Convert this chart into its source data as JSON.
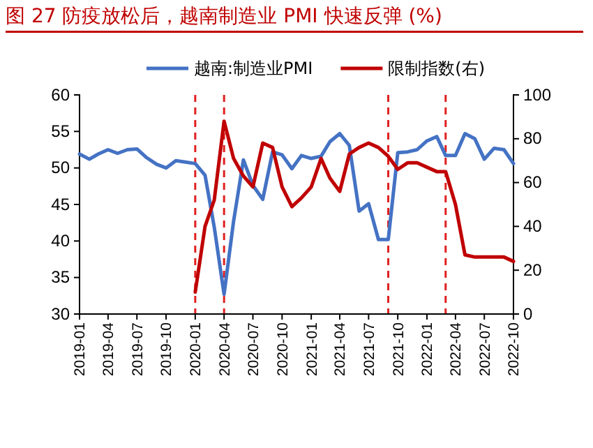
{
  "chart_data": {
    "type": "line",
    "title": "图 27 防疫放松后，越南制造业 PMI 快速反弹 (%)",
    "x": [
      "2019-01",
      "2019-02",
      "2019-03",
      "2019-04",
      "2019-05",
      "2019-06",
      "2019-07",
      "2019-08",
      "2019-09",
      "2019-10",
      "2019-11",
      "2019-12",
      "2020-01",
      "2020-02",
      "2020-03",
      "2020-04",
      "2020-05",
      "2020-06",
      "2020-07",
      "2020-08",
      "2020-09",
      "2020-10",
      "2020-11",
      "2020-12",
      "2021-01",
      "2021-02",
      "2021-03",
      "2021-04",
      "2021-05",
      "2021-06",
      "2021-07",
      "2021-08",
      "2021-09",
      "2021-10",
      "2021-11",
      "2021-12",
      "2022-01",
      "2022-02",
      "2022-03",
      "2022-04",
      "2022-05",
      "2022-06",
      "2022-07",
      "2022-08",
      "2022-09",
      "2022-10"
    ],
    "series": [
      {
        "name": "越南:制造业PMI",
        "color": "#4472c4",
        "values": [
          51.9,
          51.2,
          51.9,
          52.5,
          52.0,
          52.5,
          52.6,
          51.4,
          50.5,
          50.0,
          51.0,
          50.8,
          50.6,
          49.0,
          41.9,
          32.7,
          42.7,
          51.1,
          47.6,
          45.7,
          52.2,
          51.8,
          49.9,
          51.7,
          51.3,
          51.6,
          53.6,
          54.7,
          53.1,
          44.1,
          45.1,
          40.2,
          40.2,
          52.1,
          52.2,
          52.5,
          53.7,
          54.3,
          51.7,
          51.7,
          54.7,
          54.0,
          51.2,
          52.7,
          52.5,
          50.6
        ]
      },
      {
        "name": "限制指数(右)",
        "color": "#c00000",
        "axis": "y2",
        "values": [
          null,
          null,
          null,
          null,
          null,
          null,
          null,
          null,
          null,
          null,
          null,
          null,
          10,
          40,
          52,
          88,
          71,
          63,
          58,
          78,
          76,
          58,
          49,
          53,
          58,
          71,
          62,
          56,
          73,
          76,
          78,
          76,
          72,
          66,
          69,
          69,
          67,
          65,
          65,
          50,
          27,
          26,
          26,
          26,
          26,
          24
        ]
      }
    ],
    "ylim": [
      30,
      60
    ],
    "yticks": [
      30,
      35,
      40,
      45,
      50,
      55,
      60
    ],
    "y2lim": [
      0,
      100
    ],
    "y2ticks": [
      0,
      20,
      40,
      60,
      80,
      100
    ],
    "xlim": [
      "2019-01",
      "2022-10"
    ],
    "xticks": [
      "2019-01",
      "2019-04",
      "2019-07",
      "2019-10",
      "2020-01",
      "2020-04",
      "2020-07",
      "2020-10",
      "2021-01",
      "2021-04",
      "2021-07",
      "2021-10",
      "2022-01",
      "2022-04",
      "2022-07",
      "2022-10"
    ],
    "ref_lines": [
      {
        "axis": "x",
        "value": "2020-01",
        "color": "#e02020",
        "line_style": "dashed"
      },
      {
        "axis": "x",
        "value": "2020-04",
        "color": "#e02020",
        "line_style": "dashed"
      },
      {
        "axis": "x",
        "value": "2021-09",
        "color": "#e02020",
        "line_style": "dashed"
      },
      {
        "axis": "x",
        "value": "2022-03",
        "color": "#e02020",
        "line_style": "dashed"
      }
    ],
    "legend": "top",
    "grid": false
  }
}
